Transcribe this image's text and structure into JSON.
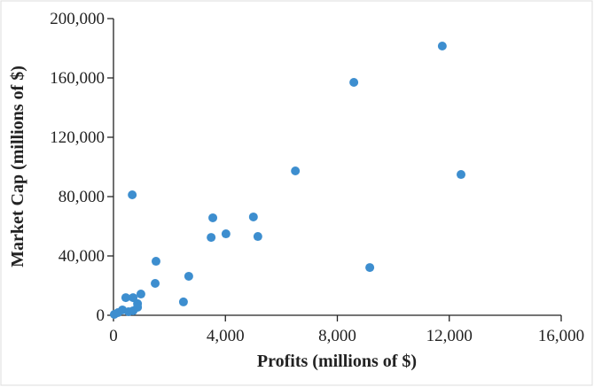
{
  "chart_data": {
    "type": "scatter",
    "x_label": "Profits (millions of $)",
    "y_label": "Market Cap (millions of $)",
    "color": "#3d8ecf",
    "xlim": [
      0,
      16000
    ],
    "ylim": [
      0,
      200000
    ],
    "xticks": [
      0,
      {
        "value": 4000,
        "label": "4,000"
      },
      {
        "value": 8000,
        "label": "8,000"
      },
      {
        "value": 12000,
        "label": "12,000"
      },
      {
        "value": 16000,
        "label": "16,000"
      }
    ],
    "yticks": [
      0,
      {
        "value": 40000,
        "label": "40,000"
      },
      {
        "value": 80000,
        "label": "80,000"
      },
      {
        "value": 120000,
        "label": "120,000"
      },
      {
        "value": 160000,
        "label": "160,000"
      },
      {
        "value": 200000,
        "label": "200,000"
      }
    ],
    "x": [
      11750,
      12420,
      8590,
      6500,
      9160,
      3550,
      5000,
      4020,
      3490,
      5160,
      670,
      1520,
      2690,
      1490,
      2500,
      980,
      440,
      700,
      860,
      860,
      160,
      320,
      540,
      700,
      30
    ],
    "y": [
      181500,
      94900,
      157000,
      97300,
      32200,
      65700,
      66300,
      54900,
      52500,
      53100,
      81200,
      36400,
      26300,
      21500,
      9000,
      14300,
      11900,
      11900,
      7800,
      5400,
      1800,
      3600,
      2400,
      3000,
      600
    ]
  }
}
